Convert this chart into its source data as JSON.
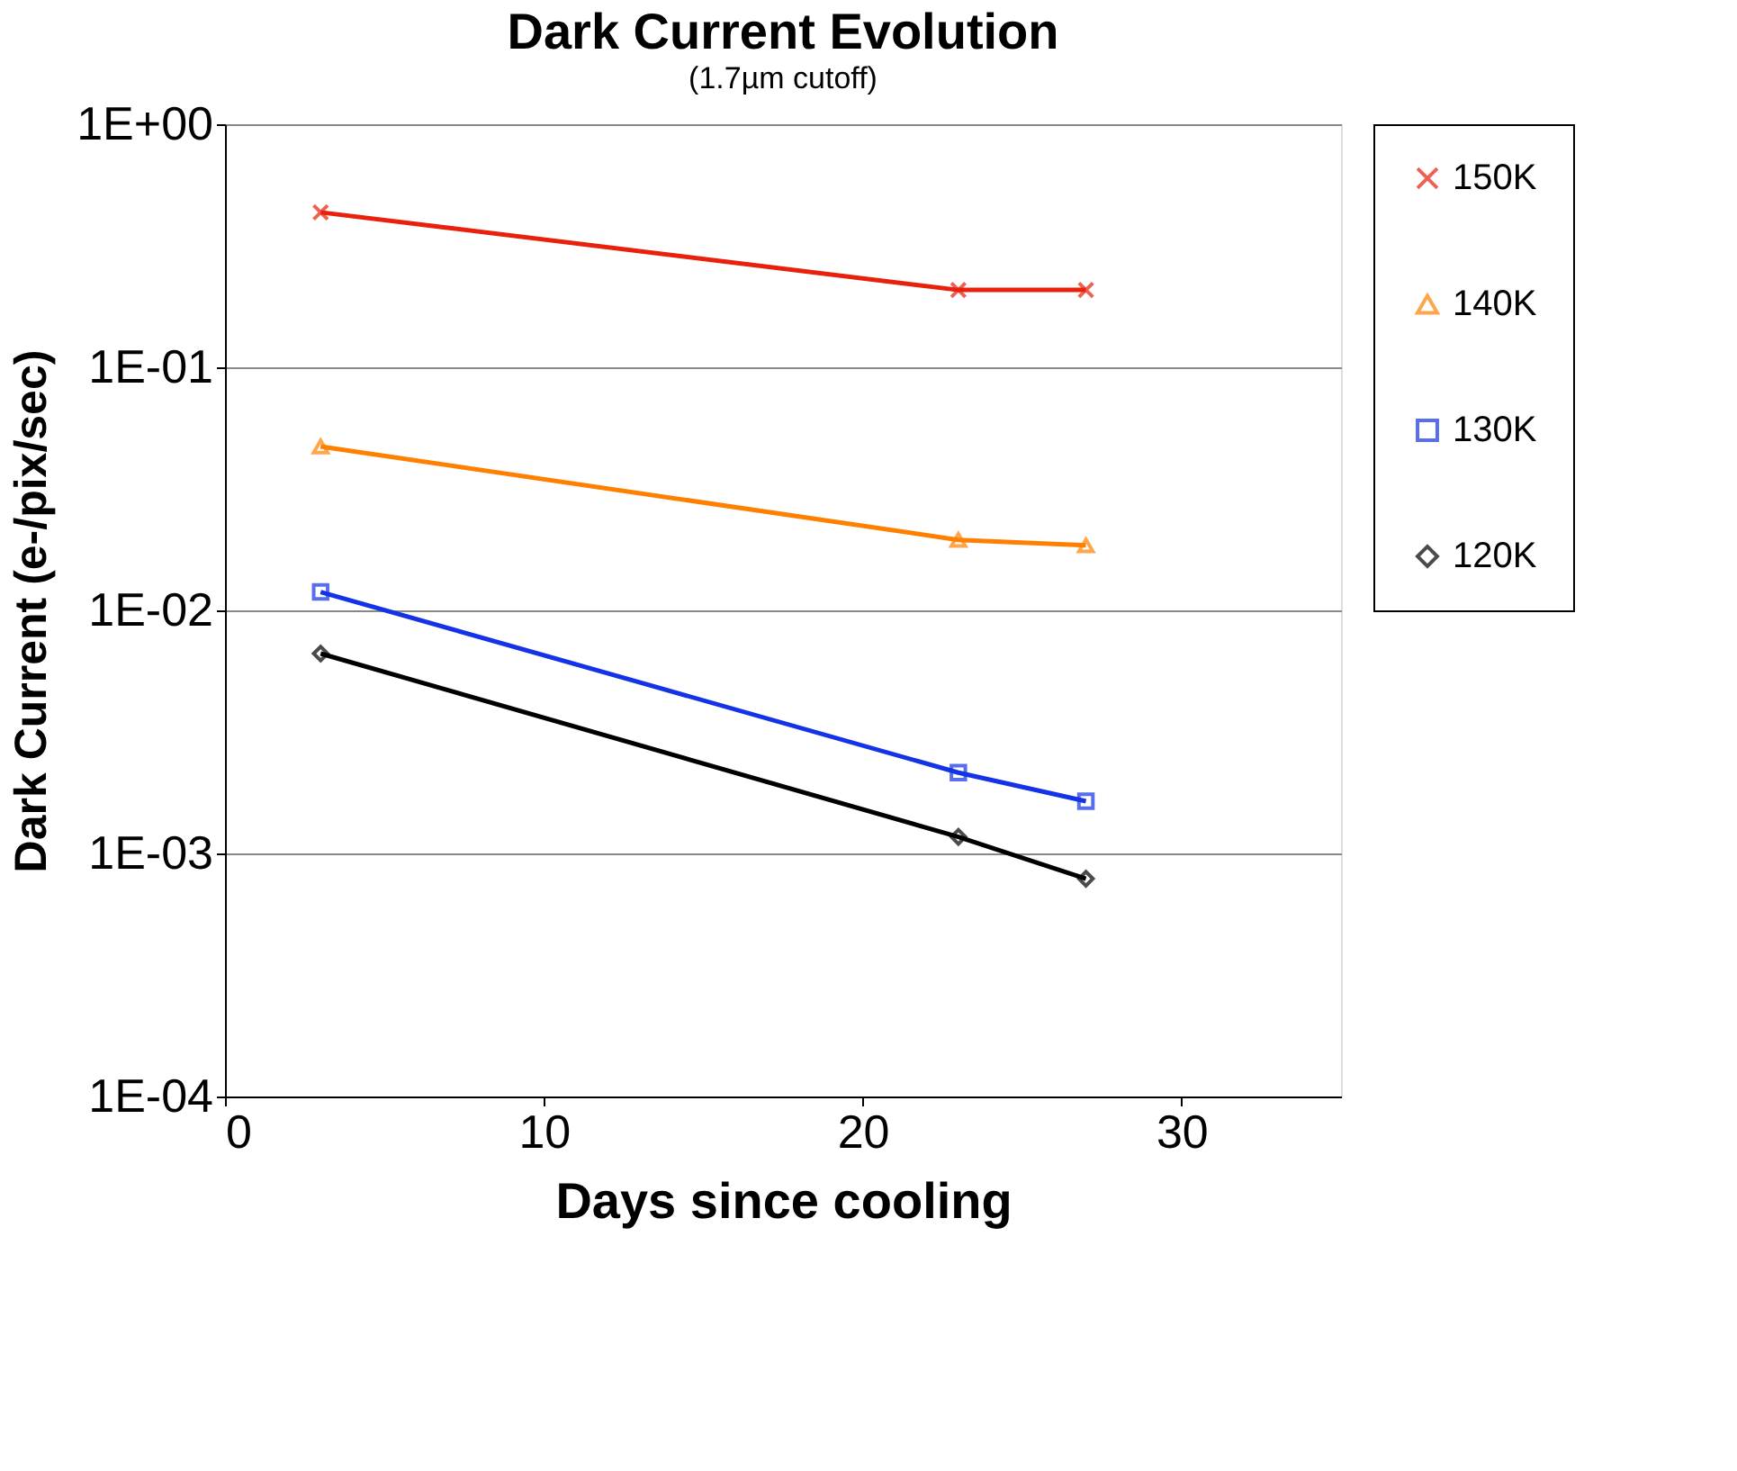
{
  "chart_data": {
    "type": "line",
    "title": "Dark Current Evolution",
    "subtitle": "(1.7µm cutoff)",
    "xlabel": "Days since cooling",
    "ylabel": "Dark Current (e-/pix/sec)",
    "x": [
      3,
      23,
      27
    ],
    "series": [
      {
        "name": "150K",
        "color": "#e8200c",
        "marker": "cross",
        "values": [
          0.434,
          0.208,
          0.208
        ]
      },
      {
        "name": "140K",
        "color": "#ff8000",
        "marker": "triangle",
        "values": [
          0.0472,
          0.0195,
          0.0185
        ]
      },
      {
        "name": "130K",
        "color": "#1432e6",
        "marker": "square",
        "values": [
          0.0119,
          0.00215,
          0.00164
        ]
      },
      {
        "name": "120K",
        "color": "#000000",
        "marker": "diamond",
        "values": [
          0.00664,
          0.00117,
          0.000787
        ]
      }
    ],
    "log": "y",
    "xlim": [
      0,
      35
    ],
    "xticks": [
      0,
      10,
      20,
      30
    ],
    "ylim": [
      0.0001,
      1
    ],
    "yticks": [
      {
        "value": 1,
        "label": "1E+00"
      },
      {
        "value": 0.1,
        "label": "1E-01"
      },
      {
        "value": 0.01,
        "label": "1E-02"
      },
      {
        "value": 0.001,
        "label": "1E-03"
      },
      {
        "value": 0.0001,
        "label": "1E-04"
      }
    ],
    "grid": "y",
    "legend": "right",
    "line_style": "solid"
  }
}
